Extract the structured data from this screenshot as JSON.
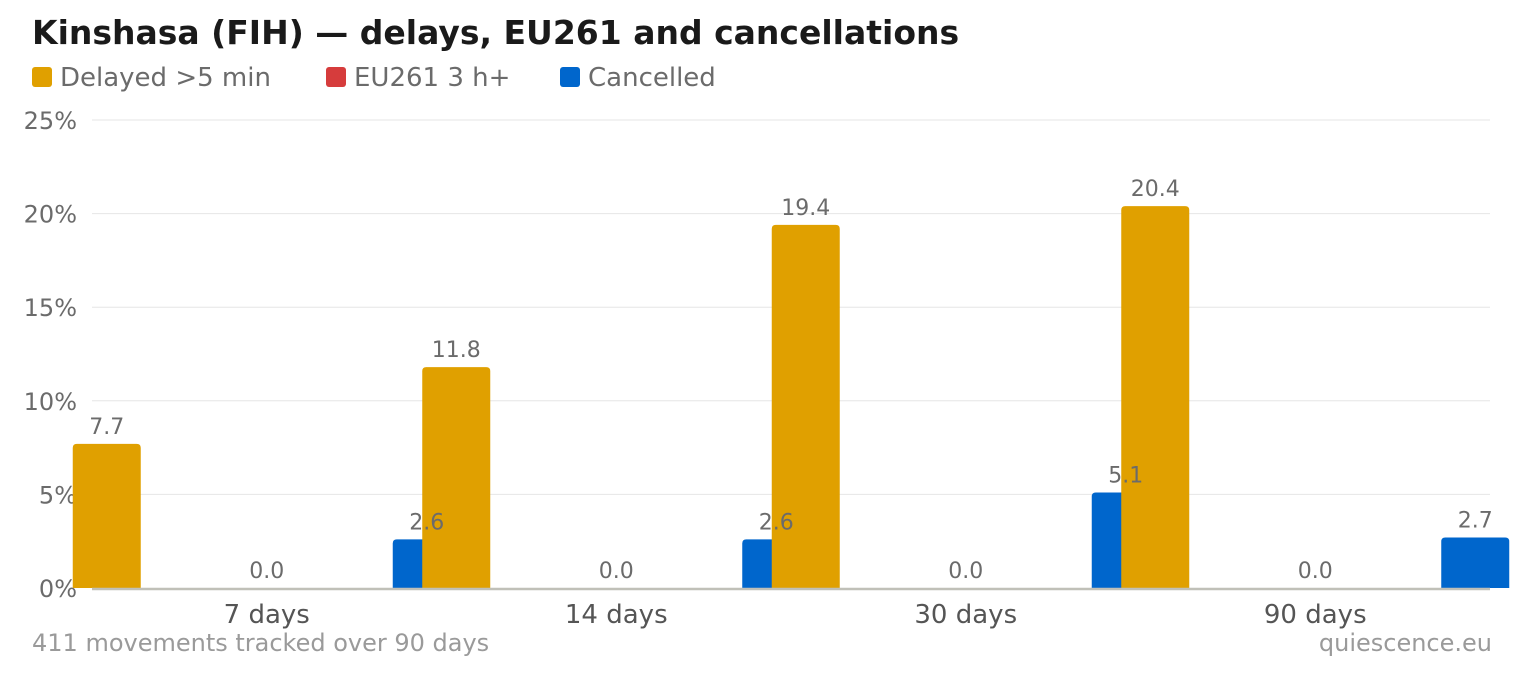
{
  "chart_data": {
    "type": "bar",
    "title": "Kinshasa (FIH) — delays, EU261 and cancellations",
    "categories": [
      "7 days",
      "14 days",
      "30 days",
      "90 days"
    ],
    "series": [
      {
        "name": "Delayed >5 min",
        "color": "#e0a000",
        "values": [
          7.7,
          11.8,
          19.4,
          20.4
        ],
        "labels": [
          "7.7",
          "11.8",
          "19.4",
          "20.4"
        ]
      },
      {
        "name": "EU261 3 h+",
        "color": "#d63c3c",
        "values": [
          0.0,
          0.0,
          0.0,
          0.0
        ],
        "labels": [
          "0.0",
          "0.0",
          "0.0",
          "0.0"
        ]
      },
      {
        "name": "Cancelled",
        "color": "#0066cc",
        "values": [
          2.6,
          2.6,
          5.1,
          2.7
        ],
        "labels": [
          "2.6",
          "2.6",
          "5.1",
          "2.7"
        ]
      }
    ],
    "ylim": [
      0,
      25
    ],
    "yticks": [
      0,
      5,
      10,
      15,
      20,
      25
    ],
    "ytick_labels": [
      "0%",
      "5%",
      "10%",
      "15%",
      "20%",
      "25%"
    ],
    "grid": true,
    "legend": "top-left"
  },
  "footer": {
    "note": "411 movements tracked over 90 days",
    "source": "quiescence.eu"
  }
}
